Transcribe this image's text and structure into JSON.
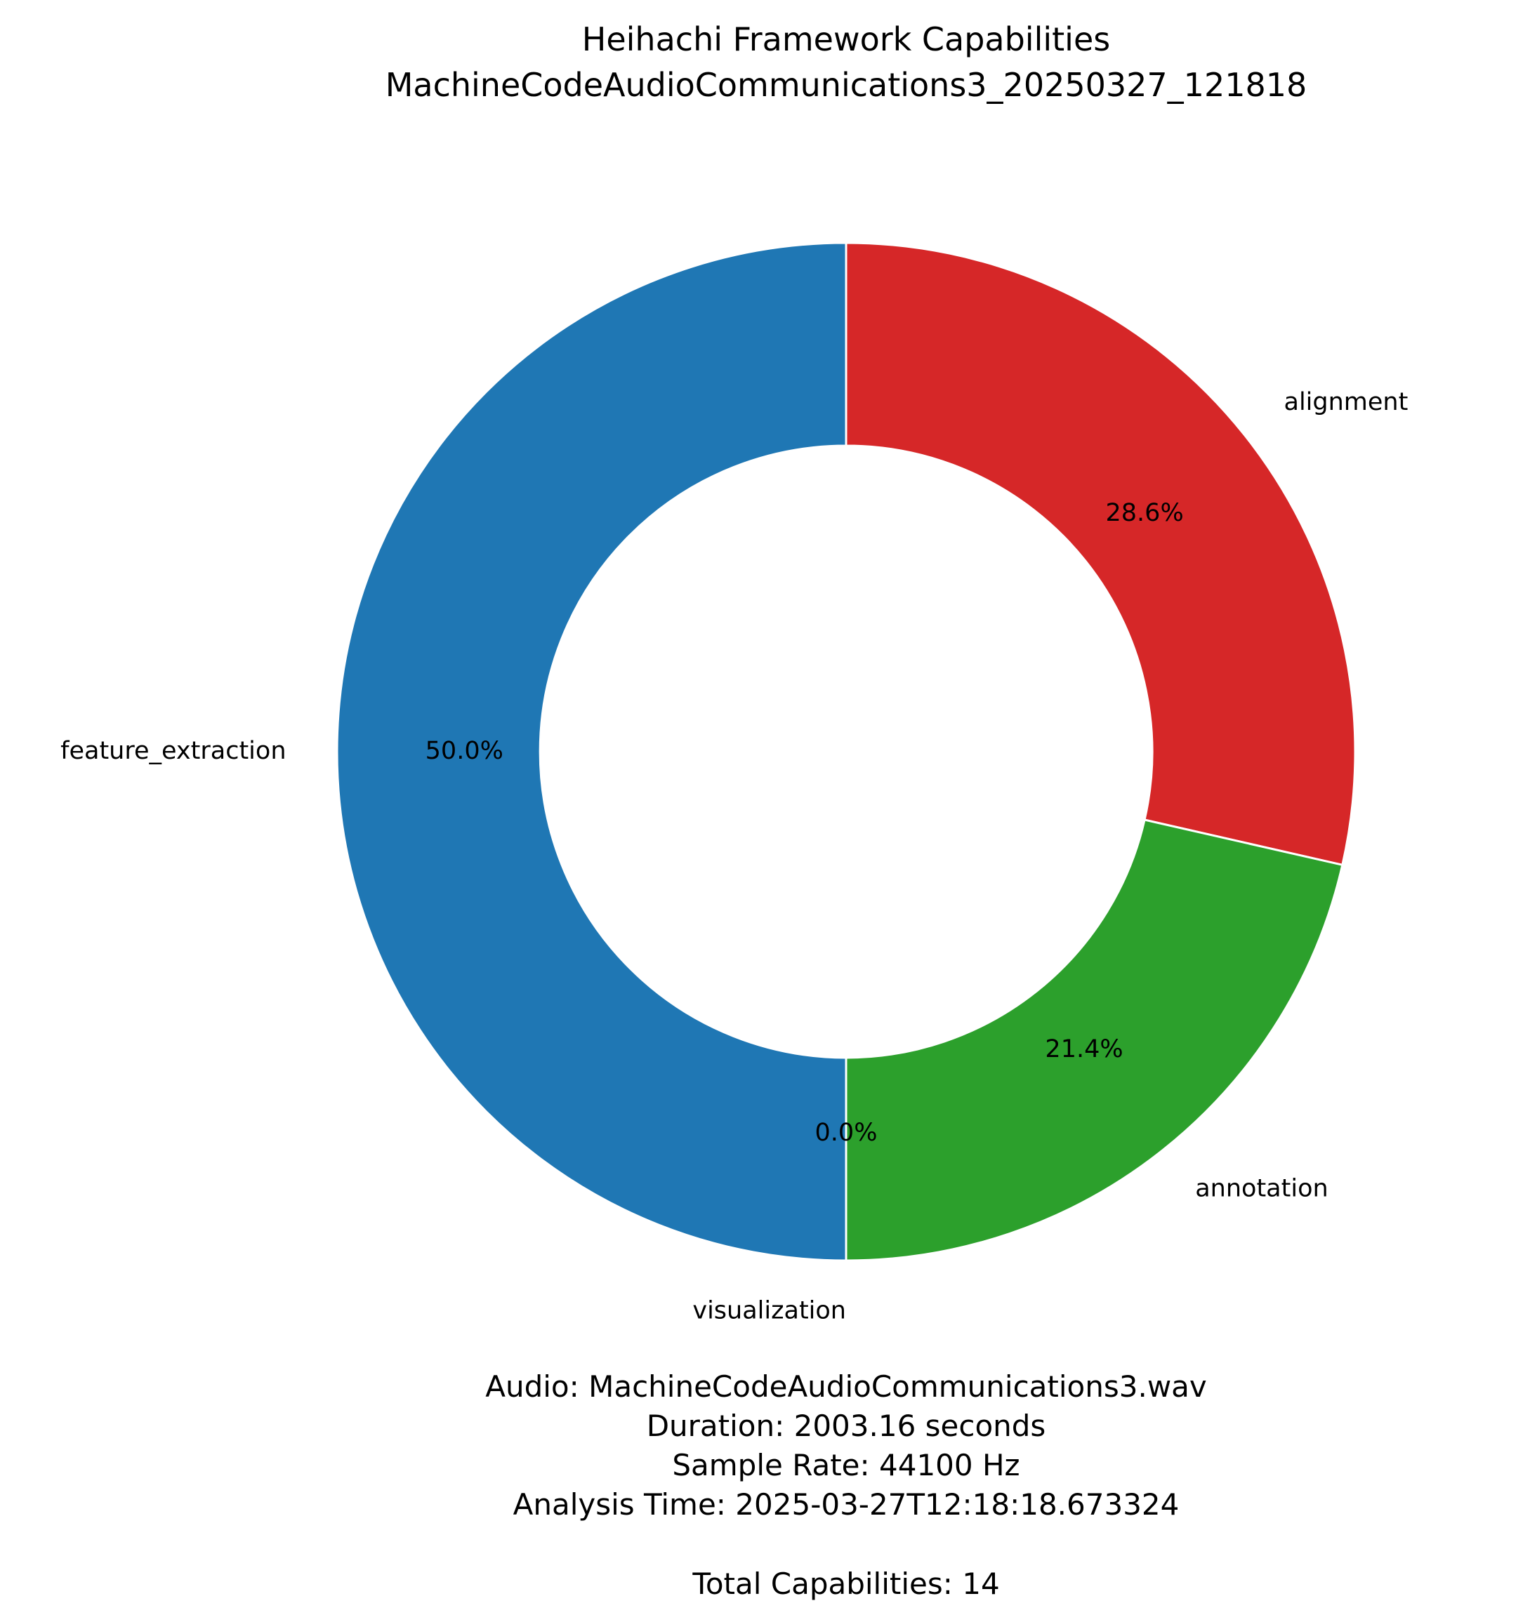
{
  "chart_data": {
    "type": "pie",
    "donut": true,
    "title": "Heihachi Framework Capabilities",
    "subtitle": "MachineCodeAudioCommunications3_20250327_121818",
    "categories": [
      "alignment",
      "annotation",
      "visualization",
      "feature_extraction"
    ],
    "values": [
      4,
      3,
      0,
      7
    ],
    "percent_labels": [
      "28.6%",
      "21.4%",
      "0.0%",
      "50.0%"
    ],
    "colors": [
      "#d62728",
      "#2ca02c",
      "#ff7f0e",
      "#1f77b4"
    ],
    "legend": "none",
    "grid": false
  },
  "info": {
    "audio": "Audio: MachineCodeAudioCommunications3.wav",
    "duration": "Duration: 2003.16 seconds",
    "sample_rate": "Sample Rate: 44100 Hz",
    "analysis_time": "Analysis Time: 2025-03-27T12:18:18.673324",
    "total": "Total Capabilities: 14"
  }
}
